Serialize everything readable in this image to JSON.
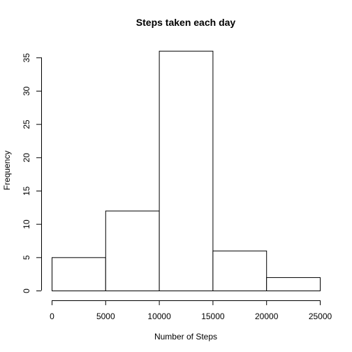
{
  "chart_data": {
    "type": "bar",
    "title": "Steps taken each day",
    "xlabel": "Number of Steps",
    "ylabel": "Frequency",
    "bins": [
      {
        "from": 0,
        "to": 5000,
        "count": 5
      },
      {
        "from": 5000,
        "to": 10000,
        "count": 12
      },
      {
        "from": 10000,
        "to": 15000,
        "count": 36
      },
      {
        "from": 15000,
        "to": 20000,
        "count": 6
      },
      {
        "from": 20000,
        "to": 25000,
        "count": 2
      }
    ],
    "xlim": [
      0,
      25000
    ],
    "ylim": [
      0,
      37.44
    ],
    "xticks": [
      0,
      5000,
      10000,
      15000,
      20000,
      25000
    ],
    "yticks": [
      0,
      5,
      10,
      15,
      20,
      25,
      30,
      35
    ],
    "grid": false,
    "bar_fill": "#ffffff",
    "bar_stroke": "#000000"
  }
}
